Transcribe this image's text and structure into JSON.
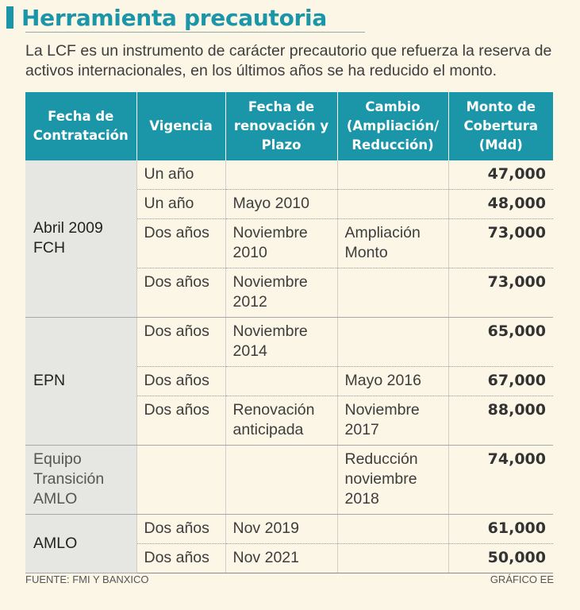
{
  "title": "Herramienta precautoria",
  "subtitle": "La LCF es un instrumento de carácter precautorio que refuerza la reserva de activos internacionales, en los últimos años se ha reducido el monto.",
  "table": {
    "headers": [
      "Fecha de Contratación",
      "Vigencia",
      "Fecha de renovación y Plazo",
      "Cambio (Ampliación/ Reducción)",
      "Monto de Cobertura (Mdd)"
    ],
    "groups": [
      {
        "label": "Abril 2009 FCH",
        "rows": [
          {
            "vigencia": "Un año",
            "renovacion": "",
            "cambio": "",
            "monto": "47,000"
          },
          {
            "vigencia": "Un año",
            "renovacion": "Mayo 2010",
            "cambio": "",
            "monto": "48,000"
          },
          {
            "vigencia": "Dos años",
            "renovacion": "Noviembre 2010",
            "cambio": "Ampliación Monto",
            "monto": "73,000"
          },
          {
            "vigencia": "Dos años",
            "renovacion": "Noviembre 2012",
            "cambio": "",
            "monto": "73,000"
          }
        ]
      },
      {
        "label": "EPN",
        "rows": [
          {
            "vigencia": "Dos años",
            "renovacion": "Noviembre 2014",
            "cambio": "",
            "monto": "65,000"
          },
          {
            "vigencia": "Dos años",
            "renovacion": "",
            "cambio": "Mayo 2016",
            "monto": "67,000"
          },
          {
            "vigencia": "Dos años",
            "renovacion": "Renovación anticipada",
            "cambio": "Noviembre 2017",
            "monto": "88,000"
          }
        ]
      },
      {
        "label": "Equipo Transición AMLO",
        "rows": [
          {
            "vigencia": "",
            "renovacion": "",
            "cambio": "Reducción noviembre 2018",
            "monto": "74,000"
          }
        ]
      },
      {
        "label": "AMLO",
        "rows": [
          {
            "vigencia": "Dos años",
            "renovacion": "Nov 2019",
            "cambio": "",
            "monto": "61,000"
          },
          {
            "vigencia": "Dos años",
            "renovacion": "Nov 2021",
            "cambio": "",
            "monto": "50,000"
          }
        ]
      }
    ]
  },
  "footer": {
    "source": "FUENTE: FMI Y BANXICO",
    "credit": "GRÁFICO EE"
  },
  "colors": {
    "accent": "#1b96a9",
    "background": "#fbf6e6",
    "group_cell": "#e6e6e3"
  }
}
